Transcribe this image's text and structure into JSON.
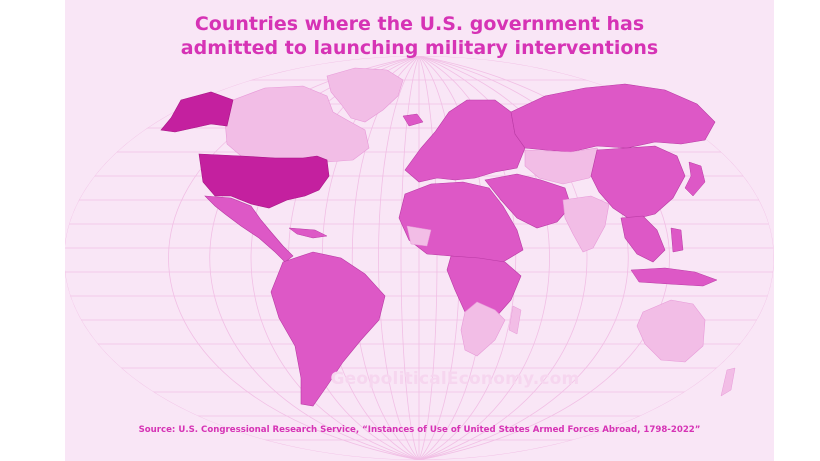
{
  "title": {
    "line1": "Countries where the U.S. government has",
    "line2": "admitted to launching military interventions"
  },
  "watermark": "GeopoliticalEconomy.com",
  "source": "Source: U.S. Congressional Research Service, “Instances of Use of United States Armed Forces Abroad, 1798-2022”",
  "colors": {
    "background": "#f9e6f6",
    "graticule": "#f1bfe5",
    "intervened": "#dd58c6",
    "not_intervened": "#f2bde6",
    "united_states": "#c4209f",
    "title_text": "#d633b5"
  },
  "legend_categories": [
    "united-states",
    "intervened",
    "not-intervened"
  ]
}
